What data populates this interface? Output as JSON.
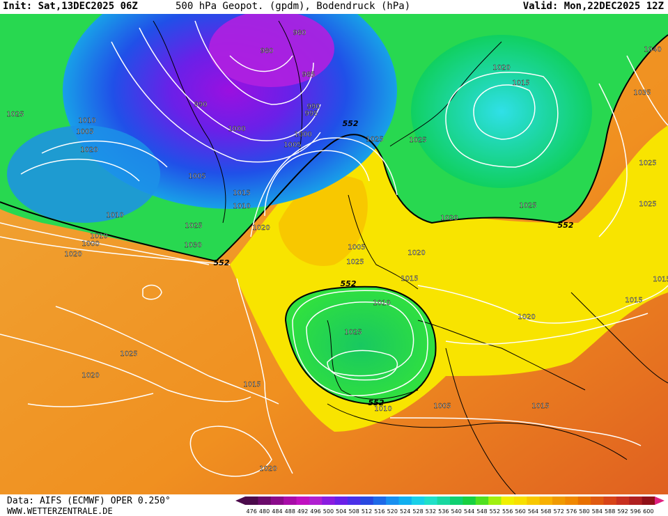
{
  "header": {
    "init": "Init: Sat,13DEC2025 06Z",
    "title": "500 hPa Geopot. (gpdm), Bodendruck (hPa)",
    "valid": "Valid: Mon,22DEC2025 12Z"
  },
  "footer": {
    "data_source": "Data: AIFS (ECMWF) OPER 0.250°",
    "website": "WWW.WETTERZENTRALE.DE"
  },
  "legend": {
    "values": [
      "476",
      "480",
      "484",
      "488",
      "492",
      "496",
      "500",
      "504",
      "508",
      "512",
      "516",
      "520",
      "524",
      "528",
      "532",
      "536",
      "540",
      "544",
      "548",
      "552",
      "556",
      "560",
      "564",
      "568",
      "572",
      "576",
      "580",
      "584",
      "588",
      "592",
      "596",
      "600"
    ],
    "colors": [
      "#4b0a4b",
      "#6a0a6a",
      "#8a0a8a",
      "#a80ca8",
      "#c010c0",
      "#b020d0",
      "#8a1ce0",
      "#6a20e8",
      "#4a30e8",
      "#2848e0",
      "#1e6ae8",
      "#1890f0",
      "#10b0f0",
      "#18d0e8",
      "#20e0c8",
      "#18d8a0",
      "#10d070",
      "#18d040",
      "#50e020",
      "#a0f010",
      "#f0f000",
      "#f8e000",
      "#f8c800",
      "#f8b000",
      "#f09a00",
      "#f08800",
      "#e87000",
      "#e05a10",
      "#d84418",
      "#c83020",
      "#b02020",
      "#901018"
    ]
  },
  "map": {
    "pressure_labels": [
      "980",
      "980",
      "985",
      "990",
      "995",
      "990",
      "1000",
      "1000",
      "1005",
      "1005",
      "1005",
      "1010",
      "1010",
      "1015",
      "1020",
      "1025",
      "1025",
      "1025",
      "1025",
      "1025",
      "1030",
      "1035",
      "1040",
      "1025",
      "1020",
      "1015",
      "1010",
      "1010",
      "1000",
      "1005",
      "1020",
      "1015",
      "1025",
      "1025",
      "1020",
      "1015",
      "1010",
      "1005",
      "1010",
      "1020",
      "1015",
      "1015",
      "1020",
      "1020",
      "1025",
      "1020",
      "1015",
      "1020",
      "1025"
    ],
    "geopotential_labels": [
      "552",
      "552",
      "552",
      "552",
      "552"
    ],
    "colors": {
      "ocean_orange": "#f0a030",
      "yellow": "#f8e800",
      "green": "#20d050",
      "blue": "#1840e0",
      "purple": "#8a20e0",
      "cyan": "#20d8d8"
    }
  }
}
